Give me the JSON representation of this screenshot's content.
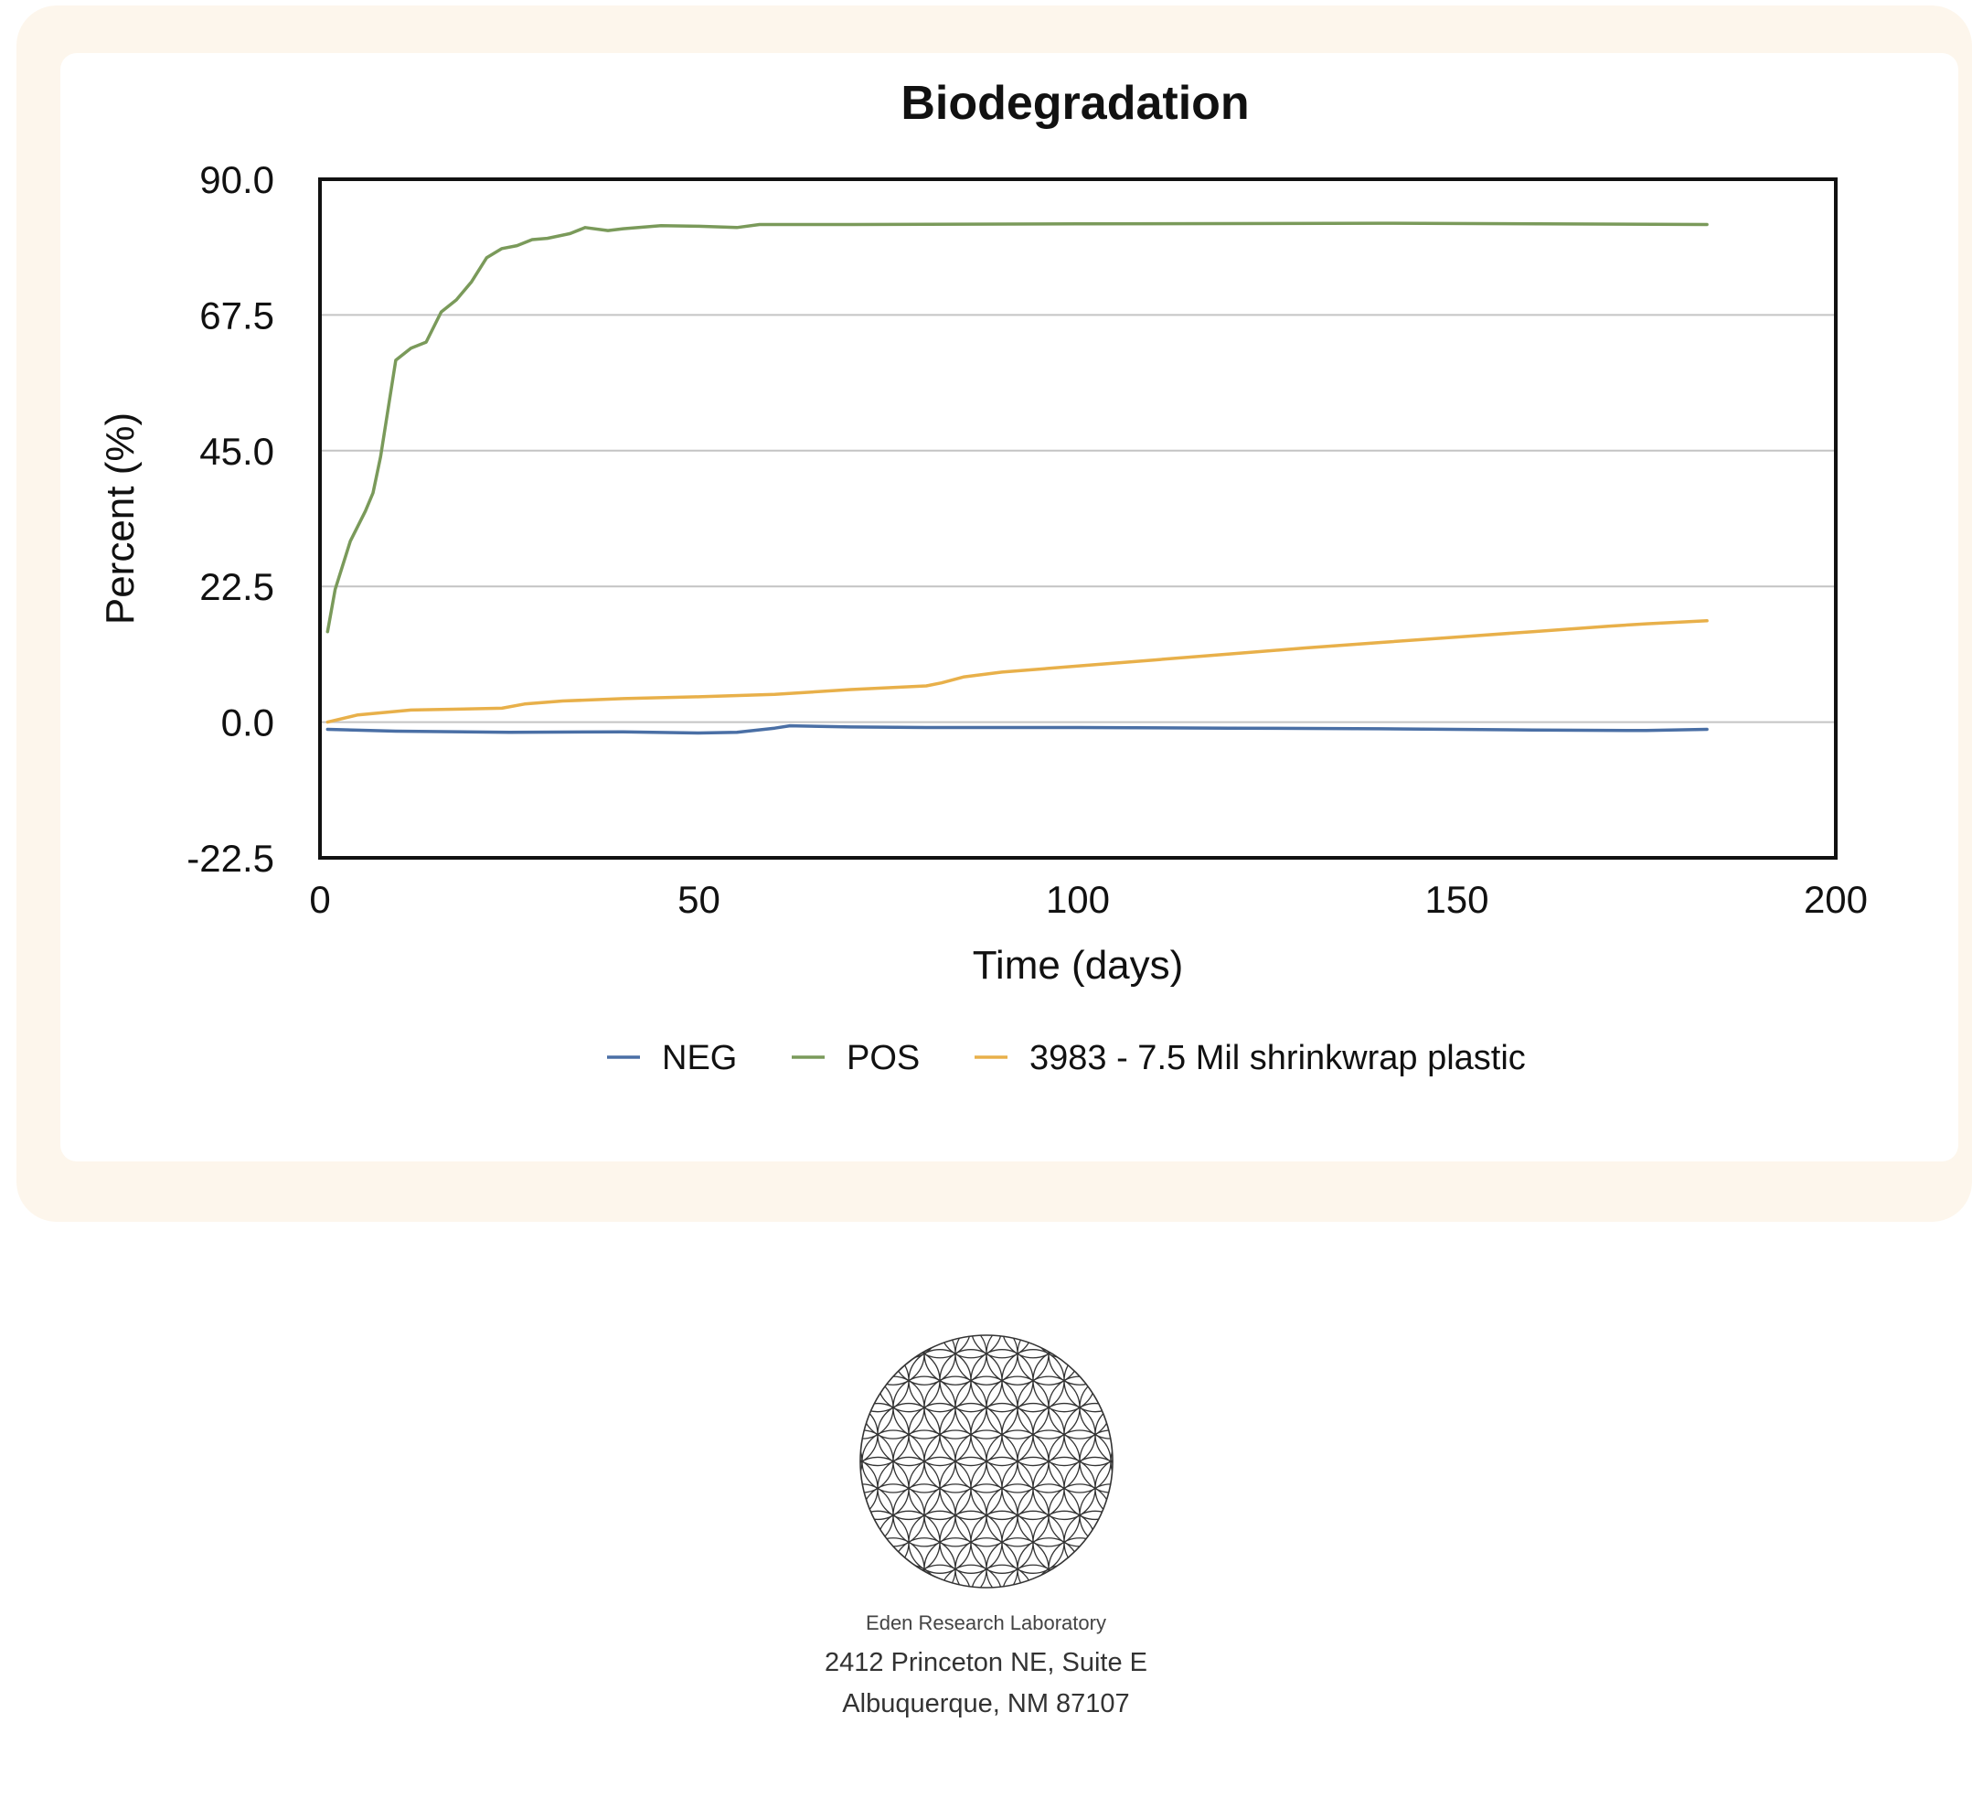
{
  "chart_data": {
    "type": "line",
    "title": "Biodegradation",
    "xlabel": "Time (days)",
    "ylabel": "Percent (%)",
    "xlim": [
      0,
      200
    ],
    "ylim": [
      -22.5,
      90.0
    ],
    "x_ticks": [
      "0",
      "50",
      "100",
      "150",
      "200"
    ],
    "y_ticks": [
      "90.0",
      "67.5",
      "45.0",
      "22.5",
      "0.0",
      "-22.5"
    ],
    "grid": "horizontal",
    "legend_position": "bottom",
    "series": [
      {
        "name": "NEG",
        "color": "#4a6fa5",
        "x": [
          1,
          10,
          25,
          40,
          50,
          55,
          60,
          62,
          70,
          80,
          100,
          120,
          140,
          160,
          175,
          183
        ],
        "y": [
          -1.2,
          -1.5,
          -1.7,
          -1.6,
          -1.8,
          -1.7,
          -1.0,
          -0.6,
          -0.8,
          -0.9,
          -0.9,
          -1.0,
          -1.1,
          -1.3,
          -1.4,
          -1.2
        ]
      },
      {
        "name": "POS",
        "color": "#7a9a5a",
        "x": [
          1,
          2,
          4,
          6,
          7,
          8,
          9,
          10,
          12,
          14,
          16,
          18,
          20,
          22,
          24,
          26,
          28,
          30,
          33,
          35,
          38,
          40,
          45,
          50,
          55,
          58,
          60,
          70,
          100,
          140,
          183
        ],
        "y": [
          15,
          22,
          30,
          35,
          38,
          44,
          52,
          60,
          62,
          63,
          68,
          70,
          73,
          77,
          78.5,
          79,
          80,
          80.2,
          81,
          82,
          81.5,
          81.8,
          82.3,
          82.2,
          82,
          82.5,
          82.5,
          82.5,
          82.6,
          82.7,
          82.5
        ]
      },
      {
        "name": "3983 - 7.5 Mil shrinkwrap plastic",
        "color": "#e8b04a",
        "x": [
          1,
          5,
          12,
          24,
          27,
          32,
          40,
          50,
          60,
          70,
          80,
          82,
          85,
          90,
          100,
          110,
          120,
          130,
          140,
          150,
          160,
          170,
          175,
          183
        ],
        "y": [
          0,
          1.2,
          2,
          2.3,
          3,
          3.5,
          3.9,
          4.2,
          4.6,
          5.4,
          6,
          6.5,
          7.5,
          8.3,
          9.3,
          10.3,
          11.3,
          12.3,
          13.2,
          14.1,
          15,
          15.9,
          16.3,
          16.8
        ]
      }
    ]
  },
  "footer": {
    "lab_name": "Eden Research Laboratory",
    "address_line1": "2412 Princeton NE, Suite E",
    "address_line2": "Albuquerque, NM  87107",
    "logo_icon": "flower-of-life-icon"
  }
}
